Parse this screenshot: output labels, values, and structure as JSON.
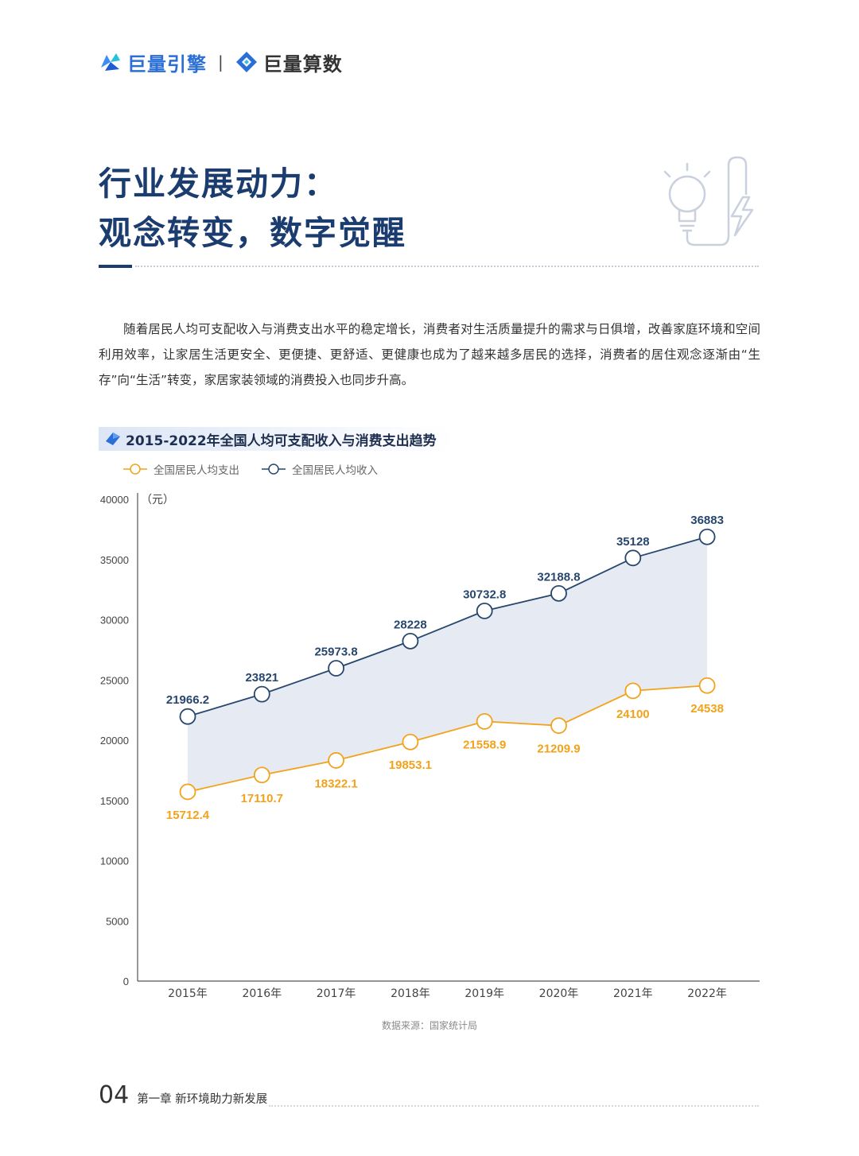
{
  "header": {
    "brand1": "巨量引擎",
    "brand2": "巨量算数",
    "separator": "|"
  },
  "page_title": {
    "line1": "行业发展动力：",
    "line2": "观念转变，数字觉醒"
  },
  "intro_text": "随着居民人均可支配收入与消费支出水平的稳定增长，消费者对生活质量提升的需求与日俱增，改善家庭环境和空间利用效率，让家居生活更安全、更便捷、更舒适、更健康也成为了越来越多居民的选择，消费者的居住观念逐渐由“生存”向“生活”转变，家居家装领域的消费投入也同步升高。",
  "chart_data": {
    "type": "line",
    "title": "2015-2022年全国人均可支配收入与消费支出趋势",
    "ylabel": "（元）",
    "xlabel": "",
    "ylim": [
      0,
      40000
    ],
    "yticks": [
      "0",
      "5000",
      "10000",
      "15000",
      "20000",
      "25000",
      "30000",
      "35000",
      "40000"
    ],
    "categories": [
      "2015年",
      "2016年",
      "2017年",
      "2018年",
      "2019年",
      "2020年",
      "2021年",
      "2022年"
    ],
    "legend_position": "top-left",
    "series": [
      {
        "name": "全国居民人均支出",
        "color": "#f2a21b",
        "values": [
          15712.4,
          17110.7,
          18322.1,
          19853.1,
          21558.9,
          21209.9,
          24100,
          24538
        ],
        "labels": [
          "15712.4",
          "17110.7",
          "18322.1",
          "19853.1",
          "21558.9",
          "21209.9",
          "24100",
          "24538"
        ]
      },
      {
        "name": "全国居民人均收入",
        "color": "#27476e",
        "values": [
          21966.2,
          23821,
          25973.8,
          28228,
          30732.8,
          32188.8,
          35128,
          36883
        ],
        "labels": [
          "21966.2",
          "23821",
          "25973.8",
          "28228",
          "30732.8",
          "32188.8",
          "35128",
          "36883"
        ]
      }
    ],
    "fill_color": "#e6eaf2",
    "source": "数据来源：国家统计局"
  },
  "footer": {
    "page_number": "04",
    "chapter": "第一章  新环境助力新发展"
  }
}
